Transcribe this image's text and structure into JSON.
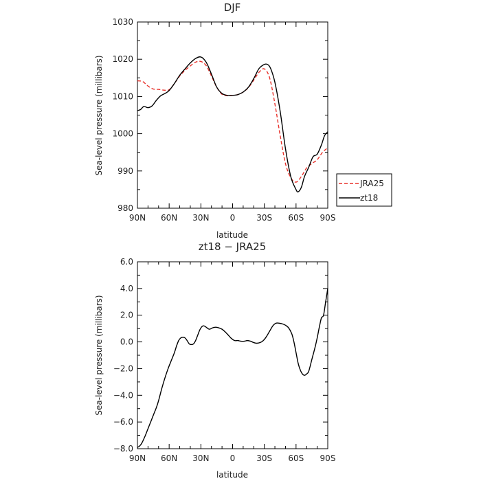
{
  "chart_data": [
    {
      "type": "line",
      "title": "DJF",
      "xlabel": "latitude",
      "ylabel": "Sea-level pressure (millibars)",
      "xlim": [
        90,
        -90
      ],
      "ylim": [
        980,
        1030
      ],
      "x_ticks": [
        90,
        60,
        30,
        0,
        -30,
        -60,
        -90
      ],
      "x_tick_labels": [
        "90N",
        "60N",
        "30N",
        "0",
        "30S",
        "60S",
        "90S"
      ],
      "y_ticks": [
        980,
        990,
        1000,
        1010,
        1020,
        1030
      ],
      "y_tick_labels": [
        "980",
        "990",
        "1000",
        "1010",
        "1020",
        "1030"
      ],
      "legend": "right",
      "series": [
        {
          "name": "JRA25",
          "color": "#e8322b",
          "dash": "dashed",
          "x": [
            90,
            85,
            80,
            75,
            70,
            65,
            60,
            55,
            50,
            45,
            40,
            35,
            30,
            25,
            20,
            15,
            10,
            5,
            0,
            -5,
            -10,
            -15,
            -20,
            -25,
            -30,
            -35,
            -40,
            -45,
            -50,
            -55,
            -60,
            -65,
            -70,
            -75,
            -80,
            -85,
            -90
          ],
          "y": [
            1014.2,
            1014.0,
            1012.8,
            1012.0,
            1011.9,
            1011.7,
            1011.8,
            1013.5,
            1015.5,
            1017.0,
            1018.2,
            1019.2,
            1019.4,
            1018.3,
            1015.5,
            1012.5,
            1010.6,
            1010.2,
            1010.3,
            1010.5,
            1011.2,
            1012.4,
            1014.4,
            1016.5,
            1017.4,
            1015.0,
            1008.0,
            999.5,
            992.0,
            988.2,
            987.0,
            988.5,
            990.8,
            992.0,
            993.0,
            995.0,
            996.2
          ]
        },
        {
          "name": "zt18",
          "color": "#000000",
          "dash": "solid",
          "x": [
            90,
            87,
            84,
            80,
            76,
            72,
            68,
            64,
            60,
            55,
            50,
            45,
            40,
            35,
            30,
            25,
            20,
            15,
            10,
            5,
            0,
            -5,
            -10,
            -15,
            -20,
            -25,
            -30,
            -33,
            -36,
            -40,
            -45,
            -50,
            -55,
            -60,
            -62,
            -65,
            -68,
            -72,
            -76,
            -80,
            -84,
            -87,
            -90
          ],
          "y": [
            1006.2,
            1006.5,
            1007.3,
            1007.0,
            1007.5,
            1009.0,
            1010.2,
            1010.8,
            1011.6,
            1013.5,
            1015.7,
            1017.4,
            1019.0,
            1020.2,
            1020.6,
            1019.2,
            1016.0,
            1012.5,
            1010.8,
            1010.3,
            1010.3,
            1010.5,
            1011.2,
            1012.5,
            1014.8,
            1017.5,
            1018.6,
            1018.6,
            1017.5,
            1013.8,
            1006.0,
            996.0,
            988.5,
            985.0,
            984.4,
            985.6,
            988.5,
            991.0,
            993.8,
            994.5,
            997.0,
            999.5,
            1000.5
          ]
        }
      ]
    },
    {
      "type": "line",
      "title": "zt18 − JRA25",
      "xlabel": "latitude",
      "ylabel": "Sea-level pressure (millibars)",
      "xlim": [
        90,
        -90
      ],
      "ylim": [
        -8,
        6
      ],
      "x_ticks": [
        90,
        60,
        30,
        0,
        -30,
        -60,
        -90
      ],
      "x_tick_labels": [
        "90N",
        "60N",
        "30N",
        "0",
        "30S",
        "60S",
        "90S"
      ],
      "y_ticks": [
        -8,
        -6,
        -4,
        -2,
        0,
        2,
        4,
        6
      ],
      "y_tick_labels": [
        "−8.0",
        "−6.0",
        "−4.0",
        "−2.0",
        "0.0",
        "2.0",
        "4.0",
        "6.0"
      ],
      "series": [
        {
          "color": "#000000",
          "dash": "solid",
          "x": [
            90,
            88,
            86,
            83,
            80,
            77,
            74,
            72,
            70,
            67,
            64,
            61,
            58,
            55,
            53,
            51,
            49,
            47,
            45,
            43,
            41,
            39,
            37,
            35,
            33,
            31,
            29,
            27,
            25,
            22,
            19,
            16,
            13,
            10,
            7,
            4,
            1,
            -2,
            -5,
            -8,
            -11,
            -14,
            -17,
            -20,
            -23,
            -26,
            -29,
            -32,
            -35,
            -38,
            -41,
            -44,
            -47,
            -50,
            -53,
            -56,
            -58,
            -60,
            -62,
            -64,
            -66,
            -68,
            -70,
            -72,
            -75,
            -78,
            -80,
            -82,
            -84,
            -86,
            -88,
            -90
          ],
          "y": [
            -7.9,
            -7.8,
            -7.6,
            -7.1,
            -6.5,
            -5.9,
            -5.3,
            -4.9,
            -4.4,
            -3.5,
            -2.7,
            -2.0,
            -1.4,
            -0.8,
            -0.3,
            0.1,
            0.3,
            0.35,
            0.3,
            0.1,
            -0.15,
            -0.2,
            -0.15,
            0.1,
            0.5,
            0.9,
            1.15,
            1.2,
            1.1,
            0.95,
            1.05,
            1.1,
            1.05,
            0.95,
            0.75,
            0.5,
            0.25,
            0.1,
            0.1,
            0.05,
            0.05,
            0.1,
            0.05,
            -0.05,
            -0.1,
            -0.05,
            0.1,
            0.4,
            0.8,
            1.2,
            1.4,
            1.4,
            1.35,
            1.25,
            1.05,
            0.6,
            0.0,
            -0.8,
            -1.6,
            -2.1,
            -2.4,
            -2.5,
            -2.4,
            -2.2,
            -1.3,
            -0.4,
            0.3,
            1.1,
            1.8,
            2.0,
            3.0,
            4.0
          ]
        }
      ]
    }
  ]
}
